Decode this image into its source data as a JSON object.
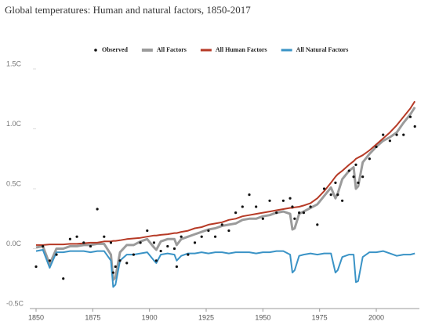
{
  "chart_data": {
    "type": "line",
    "title": "Global temperatures: Human and natural factors, 1850-2017",
    "x": [
      1850,
      1853,
      1856,
      1859,
      1862,
      1865,
      1868,
      1871,
      1874,
      1877,
      1880,
      1883,
      1884,
      1885,
      1887,
      1890,
      1893,
      1896,
      1899,
      1902,
      1903,
      1905,
      1908,
      1911,
      1912,
      1914,
      1917,
      1920,
      1923,
      1926,
      1929,
      1932,
      1935,
      1938,
      1941,
      1944,
      1947,
      1950,
      1953,
      1956,
      1959,
      1962,
      1963,
      1964,
      1966,
      1968,
      1971,
      1974,
      1977,
      1980,
      1982,
      1983,
      1985,
      1988,
      1990,
      1991,
      1992,
      1994,
      1997,
      2000,
      2003,
      2006,
      2009,
      2012,
      2015,
      2017
    ],
    "series": [
      {
        "name": "Observed",
        "color": "#111111",
        "style": "markers",
        "values": [
          -0.15,
          0.02,
          -0.1,
          -0.05,
          -0.25,
          0.08,
          0.1,
          0.05,
          0.02,
          0.33,
          0.1,
          0.05,
          -0.2,
          -0.15,
          -0.1,
          -0.12,
          -0.05,
          0.05,
          0.15,
          0.05,
          -0.1,
          -0.02,
          0.02,
          0.0,
          -0.15,
          0.1,
          -0.05,
          0.05,
          0.1,
          0.15,
          0.1,
          0.2,
          0.15,
          0.3,
          0.35,
          0.45,
          0.35,
          0.25,
          0.4,
          0.3,
          0.4,
          0.42,
          0.35,
          0.25,
          0.3,
          0.3,
          0.35,
          0.2,
          0.5,
          0.45,
          0.55,
          0.45,
          0.4,
          0.65,
          0.6,
          0.7,
          0.55,
          0.6,
          0.75,
          0.85,
          0.95,
          0.9,
          0.95,
          0.95,
          1.1,
          1.02
        ]
      },
      {
        "name": "All Factors",
        "color": "#9b9b9b",
        "style": "line",
        "width": 3,
        "values": [
          0.01,
          0.02,
          -0.13,
          0.0,
          0.0,
          0.02,
          0.02,
          0.03,
          0.03,
          0.04,
          0.04,
          -0.05,
          -0.26,
          -0.24,
          -0.03,
          0.03,
          0.03,
          0.06,
          0.08,
          0.01,
          -0.01,
          0.06,
          0.08,
          0.08,
          0.03,
          0.08,
          0.1,
          0.12,
          0.14,
          0.16,
          0.17,
          0.19,
          0.2,
          0.21,
          0.24,
          0.25,
          0.25,
          0.27,
          0.28,
          0.3,
          0.31,
          0.29,
          0.16,
          0.17,
          0.29,
          0.31,
          0.34,
          0.37,
          0.44,
          0.51,
          0.42,
          0.46,
          0.58,
          0.65,
          0.68,
          0.5,
          0.52,
          0.72,
          0.79,
          0.85,
          0.9,
          0.93,
          0.97,
          1.05,
          1.12,
          1.18
        ]
      },
      {
        "name": "All Human Factors",
        "color": "#b63a26",
        "style": "line",
        "width": 2,
        "values": [
          0.03,
          0.03,
          0.035,
          0.035,
          0.035,
          0.04,
          0.04,
          0.045,
          0.05,
          0.05,
          0.06,
          0.06,
          0.065,
          0.065,
          0.07,
          0.08,
          0.085,
          0.09,
          0.1,
          0.11,
          0.11,
          0.115,
          0.12,
          0.13,
          0.13,
          0.14,
          0.15,
          0.17,
          0.18,
          0.2,
          0.21,
          0.22,
          0.24,
          0.25,
          0.27,
          0.28,
          0.29,
          0.3,
          0.31,
          0.32,
          0.33,
          0.34,
          0.34,
          0.345,
          0.35,
          0.36,
          0.38,
          0.42,
          0.48,
          0.55,
          0.6,
          0.62,
          0.65,
          0.7,
          0.73,
          0.75,
          0.76,
          0.78,
          0.82,
          0.87,
          0.92,
          0.97,
          1.03,
          1.1,
          1.17,
          1.23
        ]
      },
      {
        "name": "All Natural Factors",
        "color": "#3a93c6",
        "style": "line",
        "width": 2,
        "values": [
          -0.02,
          -0.01,
          -0.16,
          -0.03,
          -0.03,
          -0.02,
          -0.02,
          -0.02,
          -0.03,
          -0.02,
          -0.02,
          -0.1,
          -0.32,
          -0.3,
          -0.1,
          -0.05,
          -0.05,
          -0.04,
          -0.03,
          -0.1,
          -0.12,
          -0.05,
          -0.04,
          -0.05,
          -0.1,
          -0.06,
          -0.04,
          -0.04,
          -0.03,
          -0.04,
          -0.03,
          -0.03,
          -0.04,
          -0.03,
          -0.03,
          -0.03,
          -0.04,
          -0.03,
          -0.03,
          -0.02,
          -0.02,
          -0.05,
          -0.2,
          -0.18,
          -0.06,
          -0.05,
          -0.04,
          -0.05,
          -0.04,
          -0.04,
          -0.2,
          -0.18,
          -0.07,
          -0.05,
          -0.05,
          -0.28,
          -0.27,
          -0.07,
          -0.03,
          -0.03,
          -0.02,
          -0.04,
          -0.06,
          -0.05,
          -0.05,
          -0.04
        ]
      }
    ],
    "xlim": [
      1850,
      2019
    ],
    "xticks": [
      1850,
      1875,
      1900,
      1925,
      1950,
      1975,
      2000
    ],
    "ylim": [
      -0.5,
      1.5
    ],
    "yticks": [
      {
        "value": -0.5,
        "label": "-0.5C"
      },
      {
        "value": 0,
        "label": "0.0C"
      },
      {
        "value": 0.5,
        "label": "0.5C"
      },
      {
        "value": 1,
        "label": "1.0C"
      },
      {
        "value": 1.5,
        "label": "1.5C"
      }
    ],
    "grid": false,
    "legend": "top"
  }
}
